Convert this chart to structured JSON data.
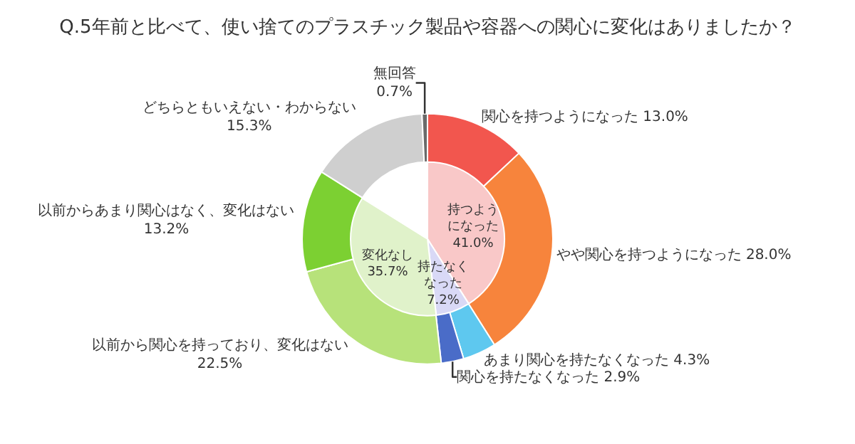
{
  "chart_data": [
    {
      "type": "donut",
      "title": "Q.5年前と比べて、使い捨てのプラスチック製品や容器への関心に変化はありましたか？",
      "categories": [
        "関心を持つようになった",
        "やや関心を持つようになった",
        "あまり関心を持たなくなった",
        "関心を持たなくなった",
        "以前から関心を持っており、変化はない",
        "以前からあまり関心はなく、変化はない",
        "どちらともいえない・わからない",
        "無回答"
      ],
      "values": [
        13.0,
        28.0,
        4.3,
        2.9,
        22.5,
        13.2,
        15.3,
        0.7
      ],
      "value_labels": [
        "13.0%",
        "28.0%",
        "4.3%",
        "2.9%",
        "22.5%",
        "13.2%",
        "15.3%",
        "0.7%"
      ],
      "colors": [
        "#f2564e",
        "#f7843c",
        "#5ec8ef",
        "#4a6cc8",
        "#b7e27a",
        "#7cd032",
        "#cfcfcf",
        "#6a6a6a"
      ]
    },
    {
      "type": "pie",
      "categories": [
        "持つようになった",
        "持たなくなった",
        "変化なし",
        null
      ],
      "values": [
        41.0,
        7.2,
        35.7,
        16.1
      ],
      "value_labels": [
        "41.0%",
        "7.2%",
        "35.7%",
        null
      ],
      "colors": [
        "#f9c8c8",
        "#d9d9f6",
        "#e0f2ca",
        "#ffffff"
      ]
    }
  ]
}
